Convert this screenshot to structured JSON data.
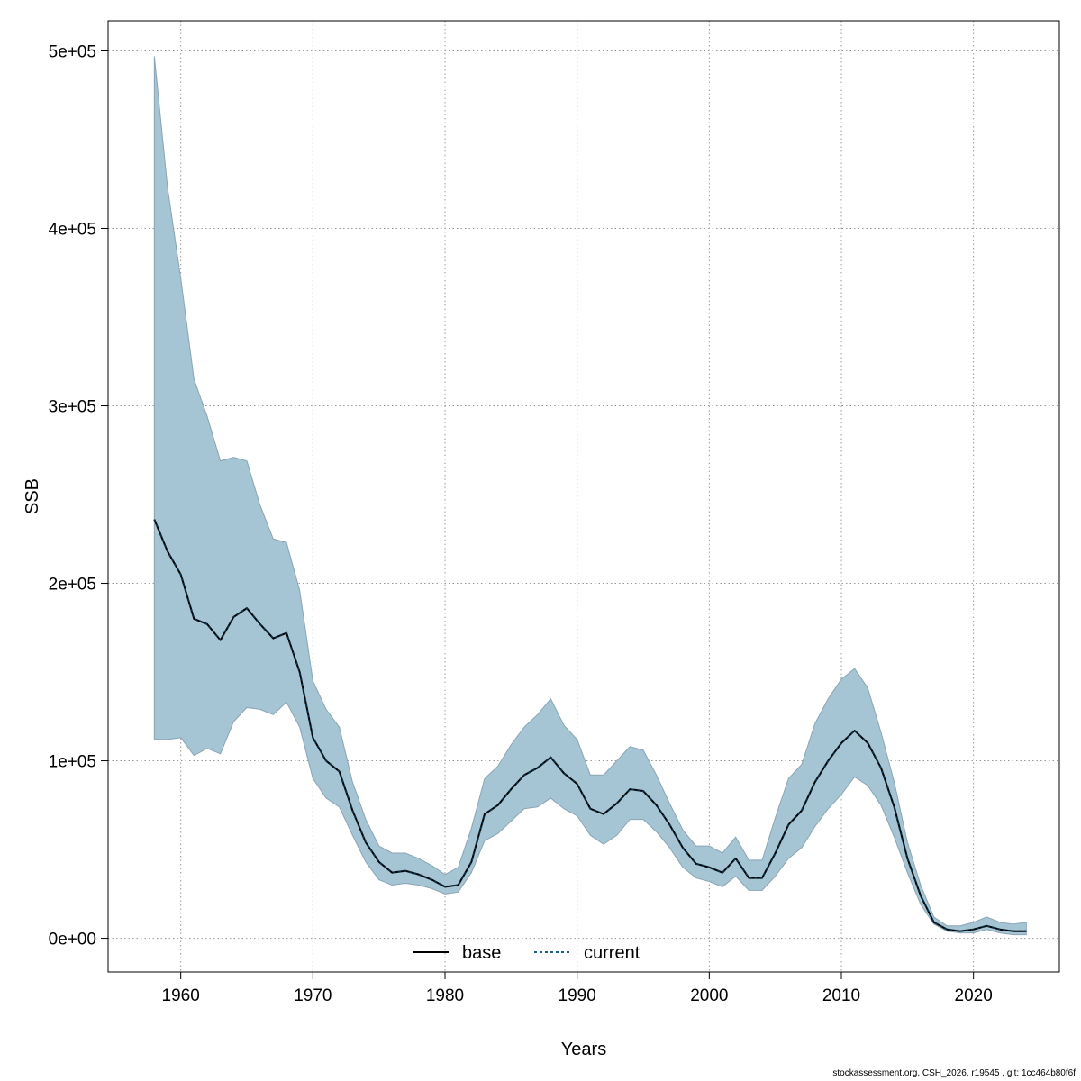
{
  "chart_data": {
    "type": "line",
    "xlabel": "Years",
    "ylabel": "SSB",
    "xlim": [
      1954.5,
      2026.5
    ],
    "ylim": [
      -19000,
      517000
    ],
    "x_ticks": [
      1960,
      1970,
      1980,
      1990,
      2000,
      2010,
      2020
    ],
    "x_tick_labels": [
      "1960",
      "1970",
      "1980",
      "1990",
      "2000",
      "2010",
      "2020"
    ],
    "y_ticks": [
      0,
      100000,
      200000,
      300000,
      400000,
      500000
    ],
    "y_tick_labels": [
      "0e+00",
      "1e+05",
      "2e+05",
      "3e+05",
      "4e+05",
      "5e+05"
    ],
    "grid": true,
    "legend_position": "bottom-center",
    "colors": {
      "band": "#a5c4d4",
      "band_edge": "#8aa5b4",
      "base": "#000000",
      "current": "#1a5f8a",
      "grid": "#999999"
    },
    "x": [
      1958,
      1959,
      1960,
      1961,
      1962,
      1963,
      1964,
      1965,
      1966,
      1967,
      1968,
      1969,
      1970,
      1971,
      1972,
      1973,
      1974,
      1975,
      1976,
      1977,
      1978,
      1979,
      1980,
      1981,
      1982,
      1983,
      1984,
      1985,
      1986,
      1987,
      1988,
      1989,
      1990,
      1991,
      1992,
      1993,
      1994,
      1995,
      1996,
      1997,
      1998,
      1999,
      2000,
      2001,
      2002,
      2003,
      2004,
      2005,
      2006,
      2007,
      2008,
      2009,
      2010,
      2011,
      2012,
      2013,
      2014,
      2015,
      2016,
      2017,
      2018,
      2019,
      2020,
      2021,
      2022,
      2023,
      2024
    ],
    "series": [
      {
        "name": "base",
        "style": "solid",
        "values": [
          236000,
          218000,
          205000,
          180000,
          177000,
          168000,
          181000,
          186000,
          177000,
          169000,
          172000,
          150000,
          113000,
          100000,
          94000,
          72000,
          54000,
          43000,
          37000,
          38000,
          36000,
          33000,
          29000,
          30000,
          43000,
          70000,
          75000,
          84000,
          92000,
          96000,
          102000,
          93000,
          87000,
          73000,
          70000,
          76000,
          84000,
          83000,
          75000,
          64000,
          51000,
          42000,
          40000,
          37000,
          45000,
          34000,
          34000,
          48000,
          64000,
          72000,
          88000,
          100000,
          110000,
          117000,
          110000,
          96000,
          74000,
          45000,
          24000,
          9000,
          5000,
          4000,
          5000,
          7000,
          5000,
          4000,
          4000
        ]
      },
      {
        "name": "current",
        "style": "dashed",
        "values": [
          236000,
          218000,
          205000,
          180000,
          177000,
          168000,
          181000,
          186000,
          177000,
          169000,
          172000,
          150000,
          113000,
          100000,
          94000,
          72000,
          54000,
          43000,
          37000,
          38000,
          36000,
          33000,
          29000,
          30000,
          43000,
          70000,
          75000,
          84000,
          92000,
          96000,
          102000,
          93000,
          87000,
          73000,
          70000,
          76000,
          84000,
          83000,
          75000,
          64000,
          51000,
          42000,
          40000,
          37000,
          45000,
          34000,
          34000,
          48000,
          64000,
          72000,
          88000,
          100000,
          110000,
          117000,
          110000,
          96000,
          74000,
          45000,
          24000,
          9000,
          5000,
          4000,
          5000,
          7000,
          5000,
          4000,
          4000
        ]
      }
    ],
    "band": {
      "upper": [
        497000,
        423000,
        372000,
        315000,
        294000,
        269000,
        271000,
        269000,
        244000,
        225000,
        223000,
        196000,
        145000,
        129000,
        119000,
        88000,
        67000,
        52000,
        48000,
        48000,
        45000,
        41000,
        36000,
        40000,
        62000,
        90000,
        97000,
        109000,
        119000,
        126000,
        135000,
        120000,
        112000,
        92000,
        92000,
        100000,
        108000,
        106000,
        92000,
        76000,
        61000,
        52000,
        52000,
        48000,
        57000,
        44000,
        44000,
        68000,
        90000,
        98000,
        121000,
        135000,
        146000,
        152000,
        141000,
        116000,
        88000,
        54000,
        30000,
        12000,
        7000,
        7000,
        9000,
        12000,
        9000,
        8000,
        9000
      ],
      "lower": [
        112000,
        112000,
        113000,
        103000,
        107000,
        104000,
        122000,
        130000,
        129000,
        126000,
        133000,
        119000,
        90000,
        79000,
        74000,
        58000,
        43000,
        33000,
        30000,
        31000,
        30000,
        28000,
        25000,
        26000,
        37000,
        55000,
        59000,
        66000,
        73000,
        74000,
        79000,
        73000,
        69000,
        58000,
        53000,
        58000,
        67000,
        67000,
        60000,
        51000,
        40000,
        34000,
        32000,
        29000,
        35000,
        27000,
        27000,
        35000,
        45000,
        51000,
        63000,
        73000,
        81000,
        91000,
        86000,
        75000,
        57000,
        37000,
        19000,
        8000,
        4000,
        3000,
        3000,
        5000,
        3000,
        2000,
        2000
      ]
    }
  },
  "footer_text": "stockassessment.org, CSH_2026, r19545 , git: 1cc464b80f6f"
}
